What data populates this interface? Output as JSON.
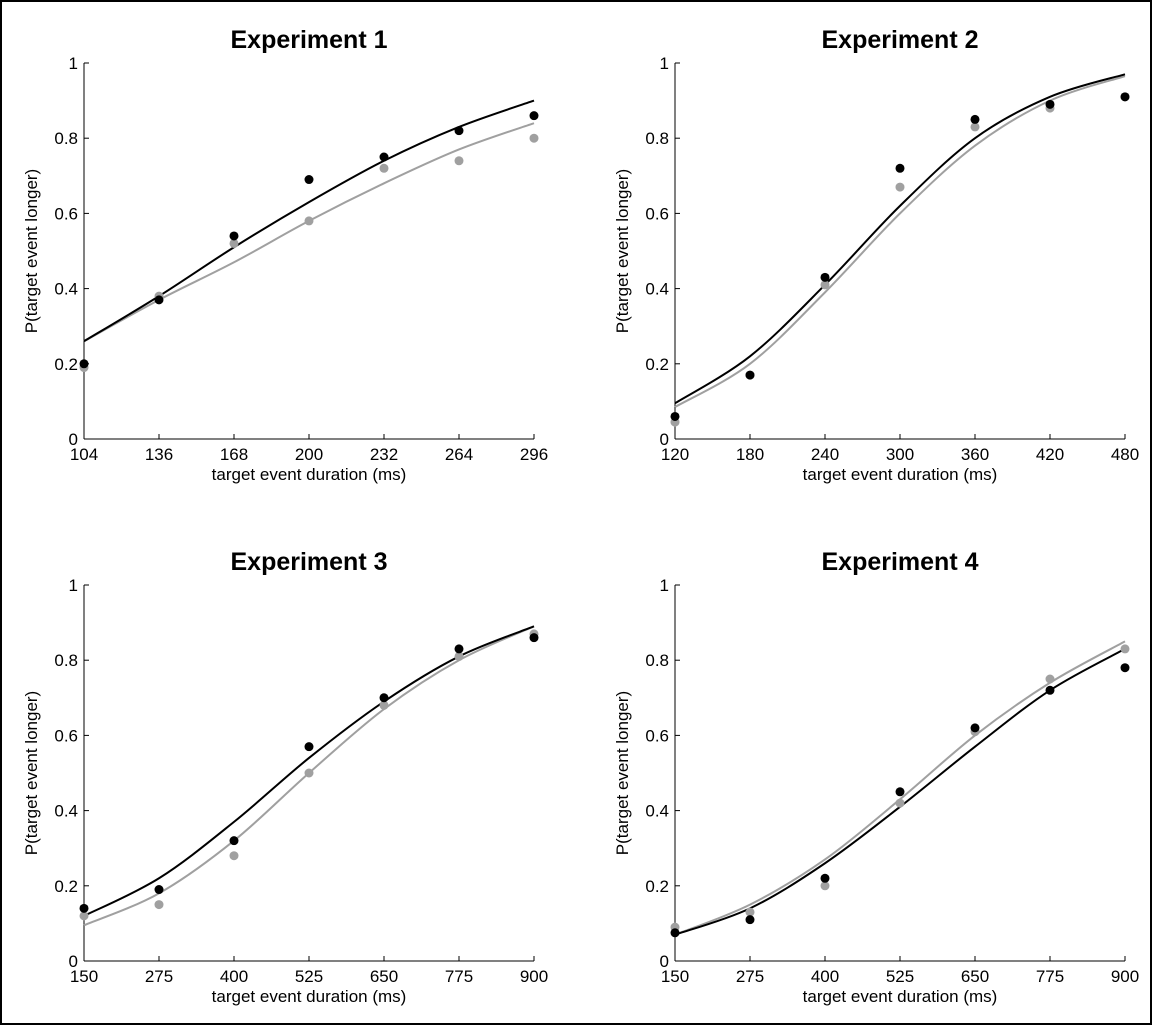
{
  "chart_data": [
    {
      "type": "scatter",
      "title": "Experiment 1",
      "xlabel": "target event duration (ms)",
      "ylabel": "P(target event longer)",
      "xlim": [
        104,
        296
      ],
      "ylim": [
        0,
        1
      ],
      "xticks": [
        "104",
        "136",
        "168",
        "200",
        "232",
        "264",
        "296"
      ],
      "yticks": [
        "0",
        "0.2",
        "0.4",
        "0.6",
        "0.8",
        "1"
      ],
      "x": [
        104,
        136,
        168,
        200,
        232,
        264,
        296
      ],
      "series": [
        {
          "color": "#000000",
          "points": [
            0.2,
            0.37,
            0.54,
            0.69,
            0.75,
            0.82,
            0.86
          ],
          "curve": [
            0.26,
            0.38,
            0.51,
            0.63,
            0.74,
            0.83,
            0.9
          ]
        },
        {
          "color": "#a0a0a0",
          "points": [
            0.19,
            0.38,
            0.52,
            0.58,
            0.72,
            0.74,
            0.8
          ],
          "curve": [
            0.26,
            0.37,
            0.47,
            0.58,
            0.68,
            0.77,
            0.84
          ]
        }
      ]
    },
    {
      "type": "scatter",
      "title": "Experiment 2",
      "xlabel": "target event duration (ms)",
      "ylabel": "P(target event longer)",
      "xlim": [
        120,
        480
      ],
      "ylim": [
        0,
        1
      ],
      "xticks": [
        "120",
        "180",
        "240",
        "300",
        "360",
        "420",
        "480"
      ],
      "yticks": [
        "0",
        "0.2",
        "0.4",
        "0.6",
        "0.8",
        "1"
      ],
      "x": [
        120,
        180,
        240,
        300,
        360,
        420,
        480
      ],
      "series": [
        {
          "color": "#000000",
          "points": [
            0.06,
            0.17,
            0.43,
            0.72,
            0.85,
            0.89,
            0.91
          ],
          "curve": [
            0.095,
            0.22,
            0.41,
            0.62,
            0.8,
            0.91,
            0.97
          ]
        },
        {
          "color": "#a0a0a0",
          "points": [
            0.045,
            0.17,
            0.41,
            0.67,
            0.83,
            0.88,
            0.91
          ],
          "curve": [
            0.085,
            0.2,
            0.39,
            0.6,
            0.78,
            0.9,
            0.965
          ]
        }
      ]
    },
    {
      "type": "scatter",
      "title": "Experiment 3",
      "xlabel": "target event duration (ms)",
      "ylabel": "P(target event longer)",
      "xlim": [
        150,
        900
      ],
      "ylim": [
        0,
        1
      ],
      "xticks": [
        "150",
        "275",
        "400",
        "525",
        "650",
        "775",
        "900"
      ],
      "yticks": [
        "0",
        "0.2",
        "0.4",
        "0.6",
        "0.8",
        "1"
      ],
      "x": [
        150,
        275,
        400,
        525,
        650,
        775,
        900
      ],
      "series": [
        {
          "color": "#000000",
          "points": [
            0.14,
            0.19,
            0.32,
            0.57,
            0.7,
            0.83,
            0.86
          ],
          "curve": [
            0.12,
            0.22,
            0.37,
            0.54,
            0.69,
            0.81,
            0.89
          ]
        },
        {
          "color": "#a0a0a0",
          "points": [
            0.12,
            0.15,
            0.28,
            0.5,
            0.68,
            0.81,
            0.87
          ],
          "curve": [
            0.095,
            0.18,
            0.32,
            0.5,
            0.67,
            0.8,
            0.89
          ]
        }
      ]
    },
    {
      "type": "scatter",
      "title": "Experiment 4",
      "xlabel": "target event duration (ms)",
      "ylabel": "P(target event longer)",
      "xlim": [
        150,
        900
      ],
      "ylim": [
        0,
        1
      ],
      "xticks": [
        "150",
        "275",
        "400",
        "525",
        "650",
        "775",
        "900"
      ],
      "yticks": [
        "0",
        "0.2",
        "0.4",
        "0.6",
        "0.8",
        "1"
      ],
      "x": [
        150,
        275,
        400,
        525,
        650,
        775,
        900
      ],
      "series": [
        {
          "color": "#000000",
          "points": [
            0.075,
            0.11,
            0.22,
            0.45,
            0.62,
            0.72,
            0.78
          ],
          "curve": [
            0.07,
            0.14,
            0.26,
            0.41,
            0.57,
            0.72,
            0.83
          ]
        },
        {
          "color": "#a0a0a0",
          "points": [
            0.09,
            0.13,
            0.2,
            0.42,
            0.61,
            0.75,
            0.83
          ],
          "curve": [
            0.07,
            0.15,
            0.27,
            0.43,
            0.6,
            0.74,
            0.85
          ]
        }
      ]
    }
  ]
}
